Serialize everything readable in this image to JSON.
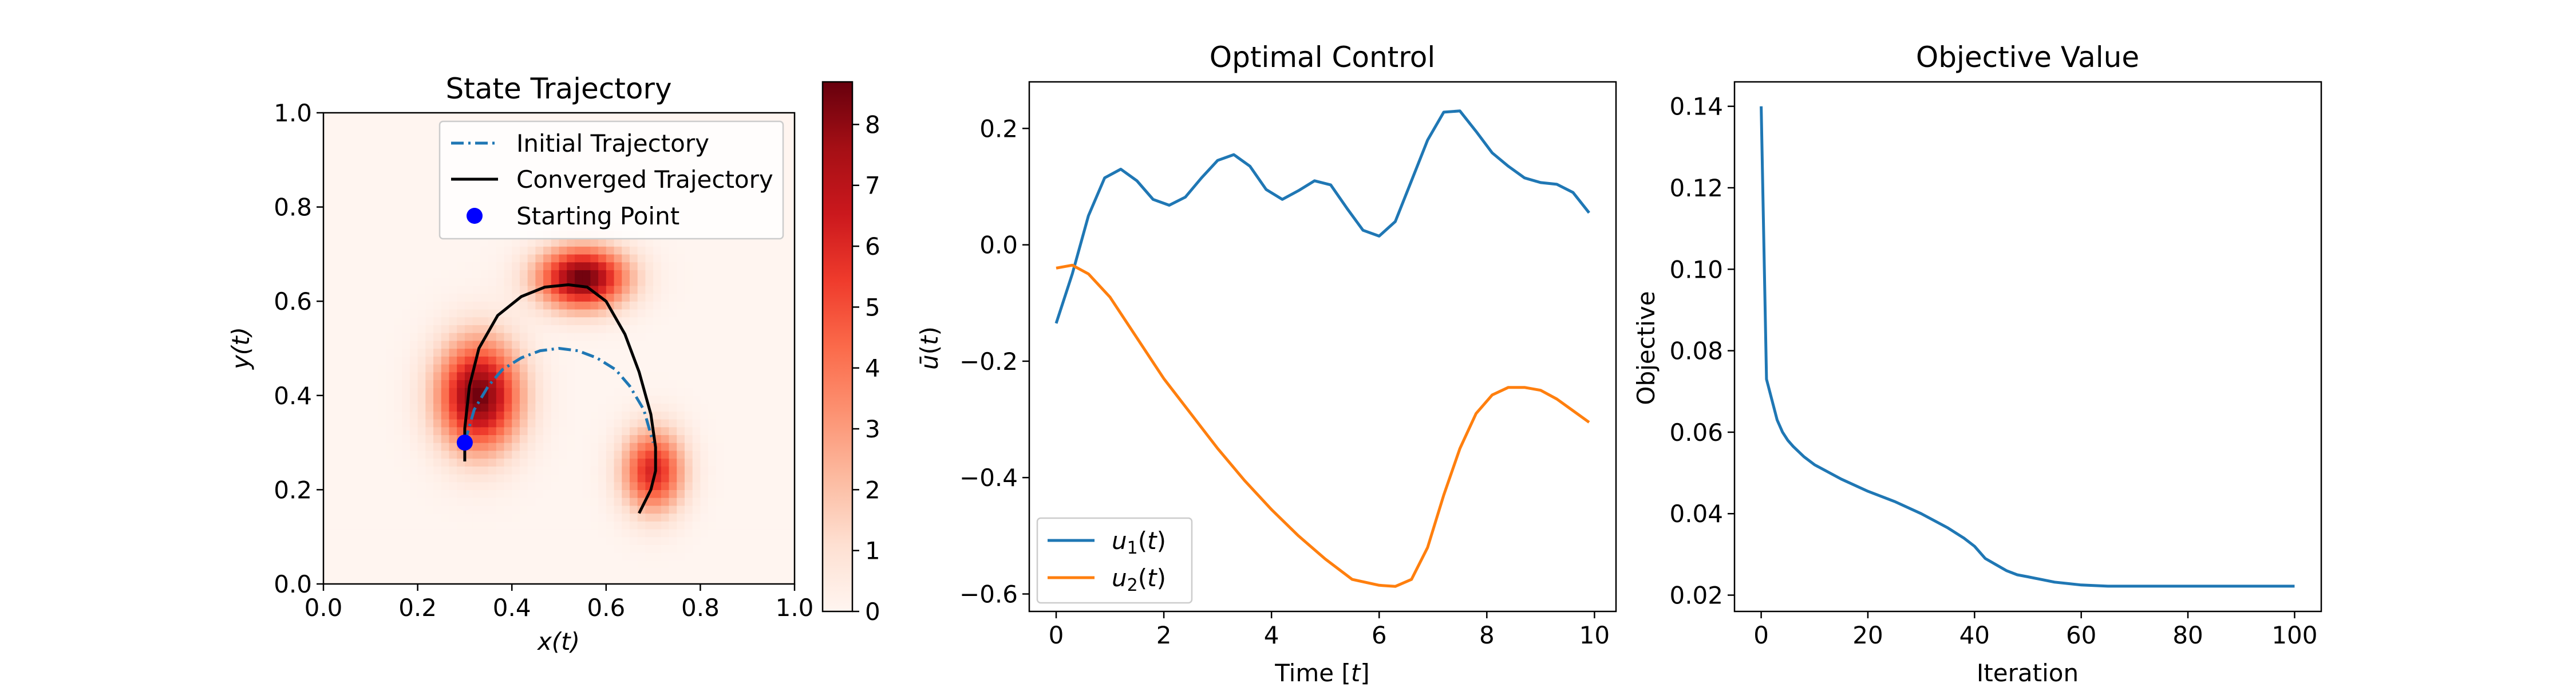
{
  "chart_data": [
    {
      "type": "heatmap",
      "title": "State Trajectory",
      "xlabel": "x(t)",
      "ylabel": "y(t)",
      "xlim": [
        0.0,
        1.0
      ],
      "ylim": [
        0.0,
        1.0
      ],
      "xticks": [
        "0.0",
        "0.2",
        "0.4",
        "0.6",
        "0.8",
        "1.0"
      ],
      "yticks": [
        "0.0",
        "0.2",
        "0.4",
        "0.6",
        "0.8",
        "1.0"
      ],
      "colormap": "Reds",
      "colorbar": {
        "range": [
          0,
          8.7
        ],
        "ticks": [
          "0",
          "1",
          "2",
          "3",
          "4",
          "5",
          "6",
          "7",
          "8"
        ]
      },
      "heatmap_blobs": [
        {
          "cx": 0.55,
          "cy": 0.65,
          "sx": 0.065,
          "sy": 0.045,
          "peak": 8.7
        },
        {
          "cx": 0.33,
          "cy": 0.4,
          "sx": 0.06,
          "sy": 0.08,
          "peak": 8.6
        },
        {
          "cx": 0.7,
          "cy": 0.24,
          "sx": 0.045,
          "sy": 0.06,
          "peak": 6.2
        }
      ],
      "legend": {
        "placement": "top-right",
        "entries": [
          "Initial Trajectory",
          "Converged Trajectory",
          "Starting Point"
        ]
      },
      "series": [
        {
          "name": "Initial Trajectory",
          "style": "dashdot",
          "color": "#1f77b4",
          "x": [
            0.3,
            0.32,
            0.35,
            0.38,
            0.42,
            0.46,
            0.5,
            0.54,
            0.58,
            0.62,
            0.65,
            0.68,
            0.7
          ],
          "y": [
            0.3,
            0.37,
            0.42,
            0.455,
            0.48,
            0.495,
            0.5,
            0.495,
            0.48,
            0.455,
            0.42,
            0.37,
            0.3
          ]
        },
        {
          "name": "Converged Trajectory",
          "style": "solid",
          "color": "#000000",
          "x": [
            0.3,
            0.3,
            0.31,
            0.33,
            0.37,
            0.42,
            0.47,
            0.52,
            0.56,
            0.6,
            0.64,
            0.67,
            0.695,
            0.705,
            0.705,
            0.695,
            0.67
          ],
          "y": [
            0.26,
            0.33,
            0.42,
            0.5,
            0.57,
            0.61,
            0.63,
            0.635,
            0.63,
            0.6,
            0.53,
            0.45,
            0.36,
            0.29,
            0.24,
            0.2,
            0.15
          ]
        },
        {
          "name": "Starting Point",
          "type": "scatter",
          "color": "#0000ff",
          "x": [
            0.3
          ],
          "y": [
            0.3
          ]
        }
      ]
    },
    {
      "type": "line",
      "title": "Optimal Control",
      "xlabel": "Time [t]",
      "ylabel": "ū(t)",
      "xlim": [
        -0.5,
        10.4
      ],
      "ylim": [
        -0.63,
        0.28
      ],
      "xticks": [
        "0",
        "2",
        "4",
        "6",
        "8",
        "10"
      ],
      "yticks": [
        "0.2",
        "0.0",
        "−0.2",
        "−0.4",
        "−0.6"
      ],
      "legend": {
        "placement": "lower-left",
        "entries": [
          "u1(t)",
          "u2(t)"
        ]
      },
      "series": [
        {
          "name": "u1(t)",
          "color": "#1f77b4",
          "x": [
            0.0,
            0.3,
            0.6,
            0.9,
            1.2,
            1.5,
            1.8,
            2.1,
            2.4,
            2.7,
            3.0,
            3.3,
            3.6,
            3.9,
            4.2,
            4.5,
            4.8,
            5.1,
            5.4,
            5.7,
            6.0,
            6.3,
            6.6,
            6.9,
            7.2,
            7.5,
            7.8,
            8.1,
            8.4,
            8.7,
            9.0,
            9.3,
            9.6,
            9.9
          ],
          "y": [
            -0.135,
            -0.05,
            0.05,
            0.115,
            0.13,
            0.11,
            0.078,
            0.068,
            0.082,
            0.115,
            0.145,
            0.155,
            0.135,
            0.095,
            0.078,
            0.093,
            0.11,
            0.103,
            0.063,
            0.025,
            0.015,
            0.04,
            0.11,
            0.18,
            0.228,
            0.23,
            0.195,
            0.158,
            0.135,
            0.115,
            0.107,
            0.104,
            0.09,
            0.055
          ]
        },
        {
          "name": "u2(t)",
          "color": "#ff7f0e",
          "x": [
            0.0,
            0.3,
            0.6,
            1.0,
            1.5,
            2.0,
            2.5,
            3.0,
            3.5,
            4.0,
            4.5,
            5.0,
            5.5,
            6.0,
            6.3,
            6.6,
            6.9,
            7.2,
            7.5,
            7.8,
            8.1,
            8.4,
            8.7,
            9.0,
            9.3,
            9.6,
            9.9
          ],
          "y": [
            -0.04,
            -0.035,
            -0.05,
            -0.09,
            -0.16,
            -0.23,
            -0.29,
            -0.35,
            -0.405,
            -0.455,
            -0.5,
            -0.54,
            -0.575,
            -0.585,
            -0.587,
            -0.575,
            -0.52,
            -0.43,
            -0.35,
            -0.29,
            -0.258,
            -0.245,
            -0.245,
            -0.25,
            -0.265,
            -0.285,
            -0.305
          ]
        }
      ]
    },
    {
      "type": "line",
      "title": "Objective Value",
      "xlabel": "Iteration",
      "ylabel": "Objective",
      "xlim": [
        -5,
        105
      ],
      "ylim": [
        0.016,
        0.146
      ],
      "xticks": [
        "0",
        "20",
        "40",
        "60",
        "80",
        "100"
      ],
      "yticks": [
        "0.02",
        "0.04",
        "0.06",
        "0.08",
        "0.10",
        "0.12",
        "0.14"
      ],
      "series": [
        {
          "name": "",
          "color": "#1f77b4",
          "x": [
            0,
            1,
            2,
            3,
            4,
            5,
            6,
            8,
            10,
            15,
            20,
            25,
            30,
            35,
            38,
            40,
            42,
            44,
            46,
            48,
            50,
            55,
            60,
            65,
            70,
            80,
            90,
            100
          ],
          "y": [
            0.14,
            0.073,
            0.068,
            0.063,
            0.06,
            0.058,
            0.0565,
            0.054,
            0.052,
            0.0485,
            0.0455,
            0.043,
            0.04,
            0.0365,
            0.034,
            0.032,
            0.029,
            0.0275,
            0.026,
            0.025,
            0.0245,
            0.0232,
            0.0225,
            0.0222,
            0.0222,
            0.0222,
            0.0222,
            0.0222
          ]
        }
      ]
    }
  ]
}
